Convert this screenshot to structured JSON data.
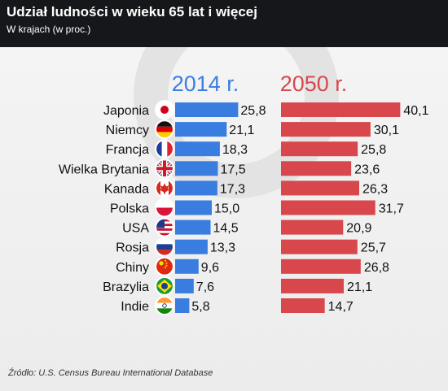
{
  "title": "Udział ludności w wieku 65 lat i więcej",
  "subtitle": "W krajach (w proc.)",
  "source": "Źródło: U.S. Census Bureau International Database",
  "chart_data": {
    "type": "bar",
    "orientation": "horizontal",
    "categories": [
      "Japonia",
      "Niemcy",
      "Francja",
      "Wielka Brytania",
      "Kanada",
      "Polska",
      "USA",
      "Rosja",
      "Chiny",
      "Brazylia",
      "Indie"
    ],
    "series": [
      {
        "name": "2014 r.",
        "color": "#3a7de0",
        "values": [
          25.8,
          21.1,
          18.3,
          17.5,
          17.3,
          15.0,
          14.5,
          13.3,
          9.6,
          7.6,
          5.8
        ],
        "labels": [
          "25,8",
          "21,1",
          "18,3",
          "17,5",
          "17,3",
          "15,0",
          "14,5",
          "13,3",
          "9,6",
          "7,6",
          "5,8"
        ]
      },
      {
        "name": "2050 r.",
        "color": "#d7474c",
        "values": [
          40.1,
          30.1,
          25.8,
          23.6,
          26.3,
          31.7,
          20.9,
          25.7,
          26.8,
          21.1,
          14.7
        ],
        "labels": [
          "40,1",
          "30,1",
          "25,8",
          "23,6",
          "26,3",
          "31,7",
          "20,9",
          "25,7",
          "26,8",
          "21,1",
          "14,7"
        ]
      }
    ],
    "flags": [
      "japan-flag-icon",
      "germany-flag-icon",
      "france-flag-icon",
      "uk-flag-icon",
      "canada-flag-icon",
      "poland-flag-icon",
      "usa-flag-icon",
      "russia-flag-icon",
      "china-flag-icon",
      "brazil-flag-icon",
      "india-flag-icon"
    ],
    "legend_placement": "top (column headers)",
    "grid": false
  }
}
